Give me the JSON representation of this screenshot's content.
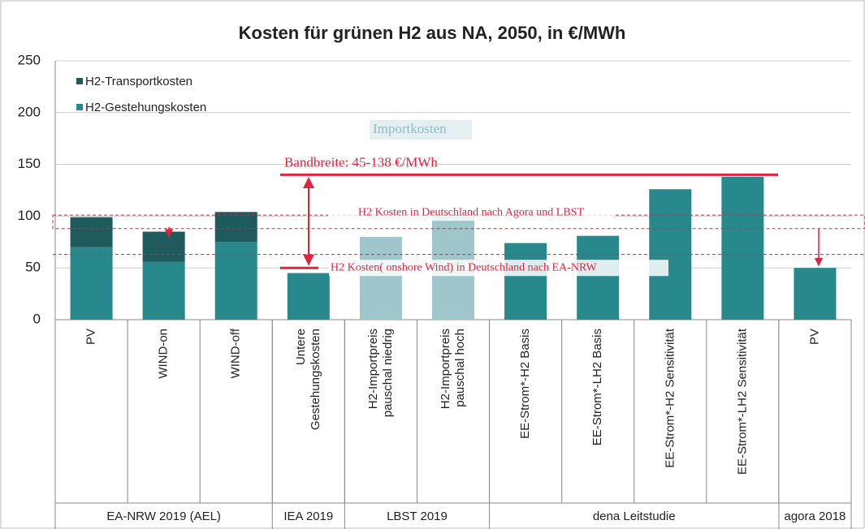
{
  "chart_data": {
    "type": "bar",
    "stacked": true,
    "title": "Kosten für grünen H2 aus NA, 2050, in €/MWh",
    "categories": [
      "PV",
      "WIND-on",
      "WIND-off",
      "Untere\nGestehungskosten",
      "H2-Importpreis\npauschal niedrig",
      "H2-Importpreis\npauschal hoch",
      "EE-Strom*-H2 Basis",
      "EE-Strom*-LH2  Basis",
      "EE-Strom*-H2 Sensitivität",
      "EE-Strom*-LH2 Sensitivität",
      "PV"
    ],
    "groups": [
      {
        "label": "EA-NRW 2019 (AEL)",
        "span": 3
      },
      {
        "label": "IEA 2019",
        "span": 1
      },
      {
        "label": "LBST 2019",
        "span": 2
      },
      {
        "label": "dena Leitstudie",
        "span": 4
      },
      {
        "label": "agora 2018",
        "span": 1
      }
    ],
    "series": [
      {
        "name": "H2-Transportkosten",
        "color": "#1f5a5d",
        "values": [
          29,
          29,
          29,
          null,
          null,
          null,
          null,
          null,
          null,
          null,
          null
        ]
      },
      {
        "name": "H2-Gestehungskosten",
        "color": "#27898c",
        "values": [
          70,
          56,
          75,
          45,
          null,
          null,
          74,
          81,
          126,
          138,
          50
        ]
      },
      {
        "name": "Importkosten",
        "color": "#9fc6cb",
        "values": [
          null,
          null,
          null,
          null,
          80,
          101,
          null,
          null,
          null,
          null,
          null
        ]
      }
    ],
    "ylim": [
      0,
      250
    ],
    "yticks": [
      0,
      50,
      100,
      150,
      200,
      250
    ],
    "grid": true,
    "annotations": [
      {
        "text": "Bandbreite: 45-138 €/MWh",
        "y": 140
      },
      {
        "text": "H2 Kosten in Deutschland nach Agora und LBST",
        "band": [
          88,
          101
        ]
      },
      {
        "text": "H2 Kosten( onshore Wind) in Deutschland nach EA-NRW",
        "y": 50,
        "dashed": 63
      }
    ]
  }
}
